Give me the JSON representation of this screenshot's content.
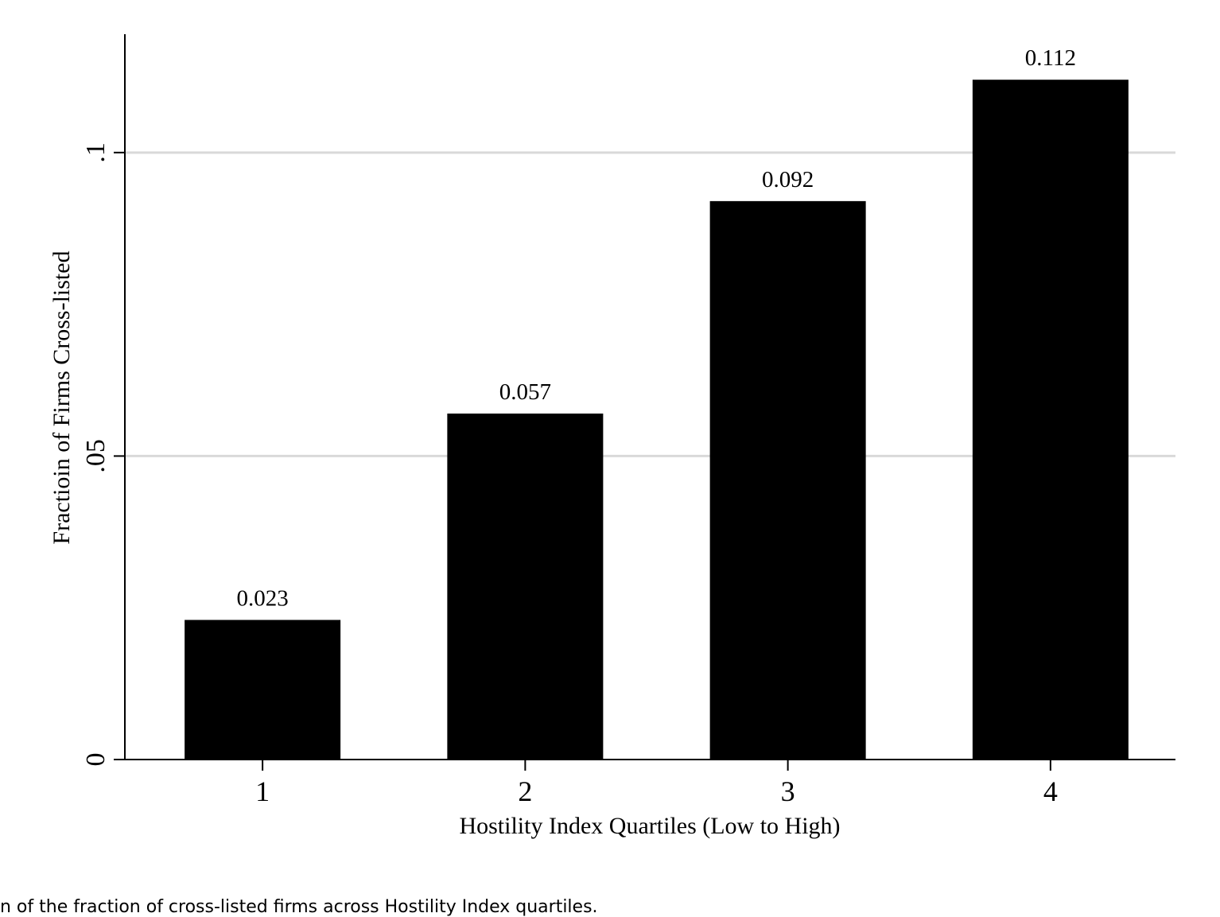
{
  "chart_data": {
    "type": "bar",
    "categories": [
      "1",
      "2",
      "3",
      "4"
    ],
    "values": [
      0.023,
      0.057,
      0.092,
      0.112
    ],
    "data_labels": [
      "0.023",
      "0.057",
      "0.092",
      "0.112"
    ],
    "xlabel": "Hostility Index Quartiles (Low to High)",
    "ylabel": "Fractioin of Firms Cross-listed",
    "ylim": [
      0,
      0.1195
    ],
    "yticks": [
      0,
      0.05,
      0.1
    ],
    "ytick_labels": [
      "0",
      ".05",
      ".1"
    ],
    "grid": true,
    "bar_color": "#000000",
    "grid_color": "#d9d9d9"
  },
  "caption": "n of the fraction of cross-listed firms across Hostility Index quartiles."
}
